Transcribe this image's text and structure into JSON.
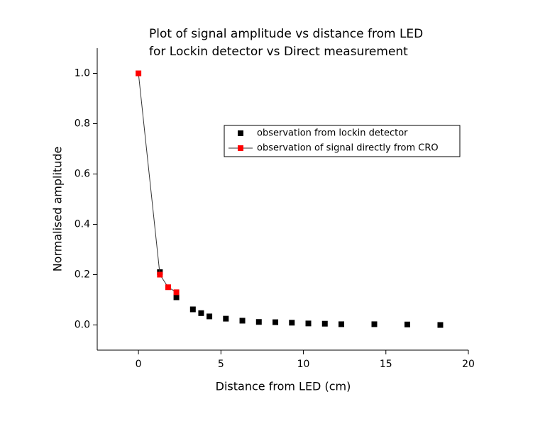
{
  "chart_data": {
    "type": "scatter",
    "title": [
      "Plot of signal amplitude vs distance from LED",
      "for Lockin detector vs Direct measurement"
    ],
    "x_label": "Distance from LED (cm)",
    "y_label": "Normalised amplitude",
    "xlim": [
      -2.5,
      20
    ],
    "xticks": [
      0,
      5,
      10,
      15,
      20
    ],
    "ylim": [
      -0.1,
      1.1
    ],
    "yticks": [
      {
        "value": 0,
        "label": "0.0"
      },
      0.2,
      0.4,
      0.6,
      0.8,
      {
        "value": 1,
        "label": "1.0"
      }
    ],
    "grid": false,
    "legend": "upper right",
    "series": [
      {
        "name": "observation from lockin detector",
        "color": "#000000",
        "line": false,
        "x": [
          1.3,
          2.3,
          3.3,
          3.8,
          4.3,
          5.3,
          6.3,
          7.3,
          8.3,
          9.3,
          10.3,
          11.3,
          12.3,
          14.3,
          16.3,
          18.3
        ],
        "values": [
          0.21,
          0.11,
          0.062,
          0.047,
          0.034,
          0.025,
          0.017,
          0.012,
          0.011,
          0.009,
          0.006,
          0.005,
          0.003,
          0.003,
          0.002,
          0.0
        ]
      },
      {
        "name": "observation of signal directly from CRO",
        "color": "#ff0000",
        "line": true,
        "x": [
          0,
          1.3,
          1.8,
          2.3
        ],
        "values": [
          1.0,
          0.2,
          0.15,
          0.13
        ]
      }
    ]
  }
}
